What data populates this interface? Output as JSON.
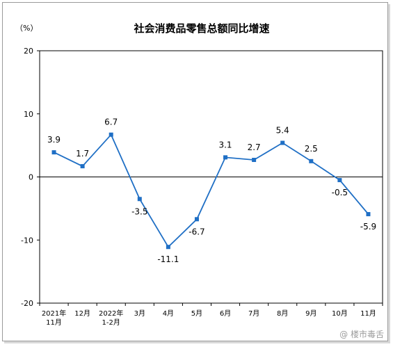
{
  "chart_data": {
    "type": "line",
    "title": "社会消费品零售总额同比增速",
    "ylabel": "（%）",
    "xlabel": "",
    "ylim": [
      -20,
      20
    ],
    "yticks": [
      20,
      10,
      0,
      -10,
      -20
    ],
    "categories": [
      [
        "2021年",
        "11月"
      ],
      [
        "12月"
      ],
      [
        "2022年",
        "1-2月"
      ],
      [
        "3月"
      ],
      [
        "4月"
      ],
      [
        "5月"
      ],
      [
        "6月"
      ],
      [
        "7月"
      ],
      [
        "8月"
      ],
      [
        "9月"
      ],
      [
        "10月"
      ],
      [
        "11月"
      ]
    ],
    "values": [
      3.9,
      1.7,
      6.7,
      -3.5,
      -11.1,
      -6.7,
      3.1,
      2.7,
      5.4,
      2.5,
      -0.5,
      -5.9
    ],
    "data_labels": [
      "3.9",
      "1.7",
      "6.7",
      "-3.5",
      "-11.1",
      "-6.7",
      "3.1",
      "2.7",
      "5.4",
      "2.5",
      "-0.5",
      "-5.9"
    ],
    "legend": "none",
    "grid": false,
    "line_color": "#1f6fc5",
    "marker": "square"
  },
  "watermark": {
    "text": "@ 楼市毒舌"
  }
}
